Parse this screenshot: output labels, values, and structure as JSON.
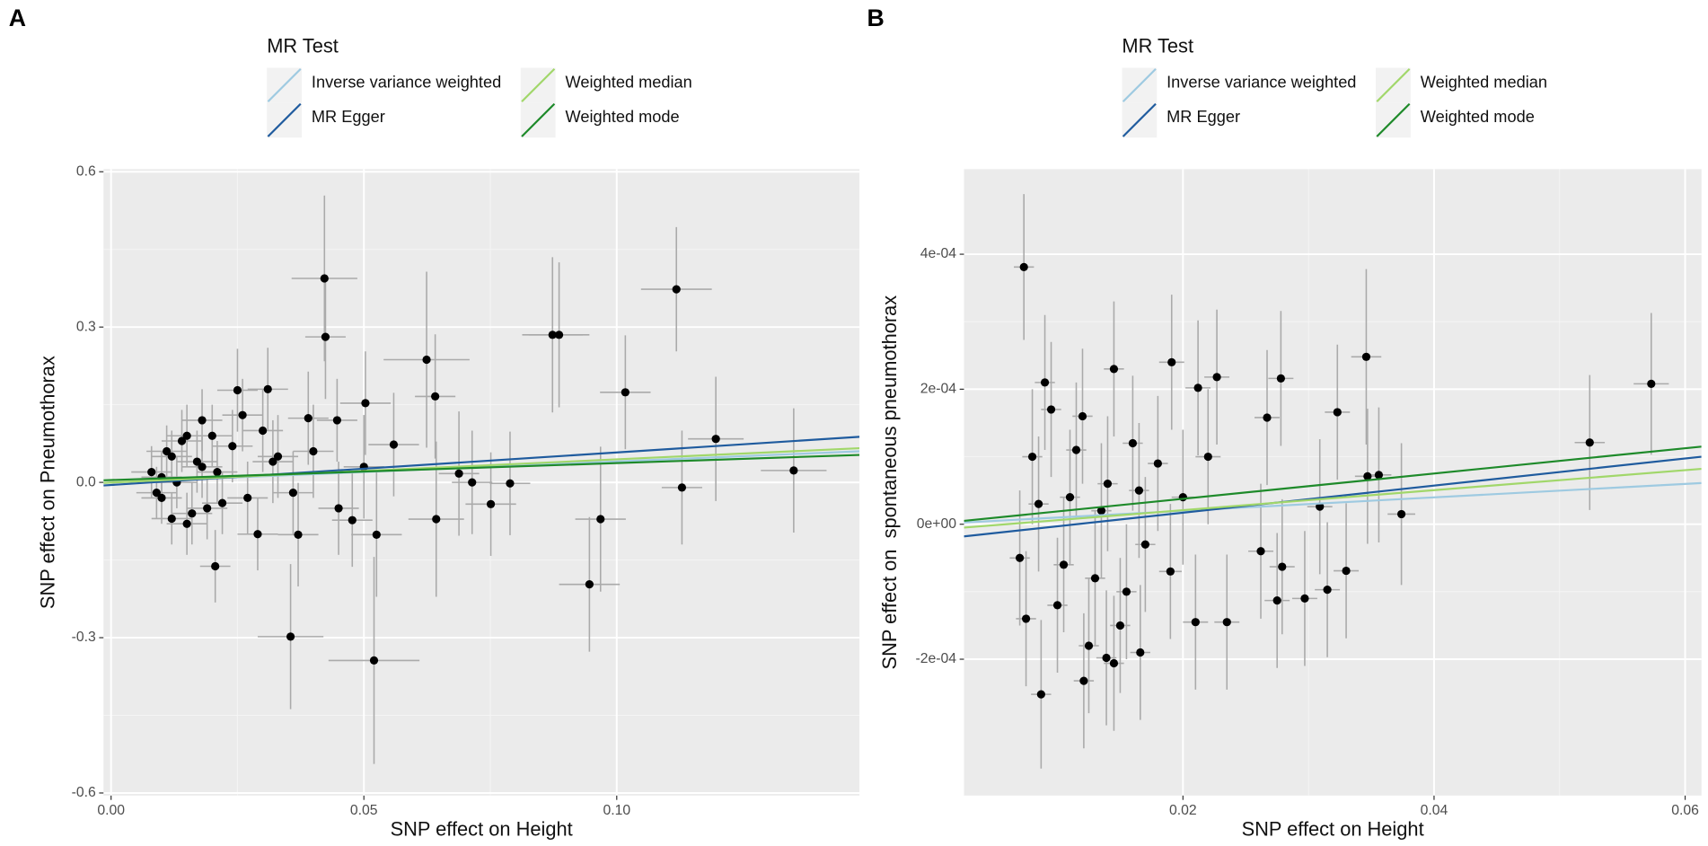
{
  "chart_data": [
    {
      "type": "scatter",
      "label": "A",
      "legend_title": "MR Test",
      "xlabel": "SNP effect on Height",
      "ylabel": "SNP effect on Pneumothorax",
      "xlim": [
        -0.0015,
        0.148
      ],
      "ylim": [
        -0.605,
        0.605
      ],
      "xticks": [
        {
          "value": 0,
          "label": "0.00"
        },
        0.05,
        {
          "value": 0.1,
          "label": "0.10"
        }
      ],
      "yticks": [
        -0.6,
        -0.3,
        {
          "value": 0,
          "label": "0.0"
        },
        0.3,
        0.6
      ],
      "grid": true,
      "point_color": "#000000",
      "errorbar_color": "#aaaaaa",
      "points": {
        "x": [
          0.0422,
          0.0424,
          0.1118,
          0.0873,
          0.0886,
          0.0624,
          0.1017,
          0.0641,
          0.1196,
          0.135,
          0.1129,
          0.0968,
          0.0946,
          0.0355,
          0.052,
          0.0643,
          0.0688,
          0.0714,
          0.0751,
          0.0789,
          0.0525,
          0.037,
          0.0206,
          0.025,
          0.031,
          0.039,
          0.0447,
          0.0503,
          0.0559,
          0.0477,
          0.008,
          0.01,
          0.012,
          0.014,
          0.016,
          0.018,
          0.02,
          0.022,
          0.009,
          0.011,
          0.013,
          0.015,
          0.017,
          0.019,
          0.021,
          0.024,
          0.027,
          0.03,
          0.033,
          0.036,
          0.01,
          0.012,
          0.015,
          0.018,
          0.026,
          0.029,
          0.032,
          0.04,
          0.045,
          0.05
        ],
        "values": [
          0.394,
          0.281,
          0.373,
          0.285,
          0.285,
          0.237,
          0.174,
          0.166,
          0.084,
          0.023,
          -0.01,
          -0.071,
          -0.197,
          -0.298,
          -0.344,
          -0.071,
          0.017,
          0.0,
          -0.042,
          -0.002,
          -0.101,
          -0.101,
          -0.162,
          0.178,
          0.18,
          0.124,
          0.12,
          0.153,
          0.073,
          -0.073,
          0.02,
          -0.03,
          0.05,
          0.08,
          -0.06,
          0.03,
          0.09,
          -0.04,
          -0.02,
          0.06,
          0.0,
          -0.08,
          0.04,
          -0.05,
          0.02,
          0.07,
          -0.03,
          0.1,
          0.05,
          -0.02,
          0.01,
          -0.07,
          0.09,
          0.12,
          0.13,
          -0.1,
          0.04,
          0.06,
          -0.05,
          0.03
        ],
        "xerr": [
          0.0065,
          0.004,
          0.007,
          0.006,
          0.006,
          0.0085,
          0.005,
          0.004,
          0.0055,
          0.0065,
          0.004,
          0.005,
          0.006,
          0.0065,
          0.009,
          0.0055,
          0.004,
          0.004,
          0.005,
          0.004,
          0.005,
          0.004,
          0.003,
          0.004,
          0.004,
          0.004,
          0.004,
          0.005,
          0.005,
          0.004,
          0.004,
          0.004,
          0.004,
          0.004,
          0.004,
          0.004,
          0.004,
          0.004,
          0.004,
          0.004,
          0.004,
          0.004,
          0.004,
          0.004,
          0.004,
          0.004,
          0.004,
          0.004,
          0.004,
          0.004,
          0.004,
          0.004,
          0.004,
          0.004,
          0.004,
          0.004,
          0.004,
          0.004,
          0.004,
          0.004
        ],
        "yerr": [
          0.16,
          0.12,
          0.12,
          0.15,
          0.14,
          0.17,
          0.11,
          0.12,
          0.12,
          0.12,
          0.11,
          0.14,
          0.13,
          0.14,
          0.2,
          0.15,
          0.12,
          0.1,
          0.1,
          0.1,
          0.12,
          0.1,
          0.07,
          0.08,
          0.08,
          0.09,
          0.08,
          0.1,
          0.1,
          0.09,
          0.05,
          0.05,
          0.05,
          0.06,
          0.06,
          0.06,
          0.06,
          0.06,
          0.05,
          0.05,
          0.05,
          0.06,
          0.06,
          0.06,
          0.06,
          0.07,
          0.07,
          0.08,
          0.08,
          0.08,
          0.05,
          0.05,
          0.06,
          0.06,
          0.07,
          0.07,
          0.08,
          0.09,
          0.09,
          0.1
        ]
      },
      "series": [
        {
          "name": "Inverse variance weighted",
          "color": "#9ecae1",
          "x": [
            -0.0015,
            0.148
          ],
          "values": [
            -0.001,
            0.06
          ]
        },
        {
          "name": "MR Egger",
          "color": "#1f5b9e",
          "x": [
            -0.0015,
            0.148
          ],
          "values": [
            -0.006,
            0.088
          ]
        },
        {
          "name": "Weighted median",
          "color": "#a1d76a",
          "x": [
            -0.0015,
            0.148
          ],
          "values": [
            -0.001,
            0.066
          ]
        },
        {
          "name": "Weighted mode",
          "color": "#1e8a2a",
          "x": [
            -0.0015,
            0.148
          ],
          "values": [
            0.004,
            0.053
          ]
        }
      ]
    },
    {
      "type": "scatter",
      "label": "B",
      "legend_title": "MR Test",
      "xlabel": "SNP effect on Height",
      "ylabel": "SNP effect on  spontaneous pneumothorax",
      "xlim": [
        0.00256,
        0.0613
      ],
      "ylim": [
        -0.000402,
        0.000526
      ],
      "xticks": [
        0.02,
        0.04,
        0.06
      ],
      "yticks": [
        {
          "value": -0.0002,
          "label": "-2e-04"
        },
        {
          "value": 0,
          "label": "0e+00"
        },
        {
          "value": 0.0002,
          "label": "2e-04"
        },
        {
          "value": 0.0004,
          "label": "4e-04"
        }
      ],
      "grid": true,
      "point_color": "#000000",
      "errorbar_color": "#aaaaaa",
      "points": {
        "x": [
          0.00733,
          0.0573,
          0.0524,
          0.0346,
          0.0323,
          0.0374,
          0.0347,
          0.0356,
          0.0278,
          0.0267,
          0.0227,
          0.0191,
          0.0212,
          0.021,
          0.0235,
          0.0315,
          0.033,
          0.0297,
          0.0275,
          0.0309,
          0.0087,
          0.0139,
          0.0121,
          0.0166,
          0.0145,
          0.0262,
          0.0279,
          0.007,
          0.008,
          0.009,
          0.01,
          0.011,
          0.012,
          0.013,
          0.014,
          0.015,
          0.016,
          0.017,
          0.018,
          0.0075,
          0.0085,
          0.0095,
          0.0105,
          0.0115,
          0.0125,
          0.0135,
          0.0145,
          0.0155,
          0.0165,
          0.019,
          0.02,
          0.022
        ],
        "values": [
          0.000381,
          0.000208,
          0.000121,
          0.000248,
          0.000166,
          1.5e-05,
          7.1e-05,
          7.3e-05,
          0.000216,
          0.000158,
          0.000218,
          0.00024,
          0.000202,
          -0.000145,
          -0.000145,
          -9.7e-05,
          -6.9e-05,
          -0.00011,
          -0.000113,
          2.6e-05,
          -0.000252,
          -0.000198,
          -0.000232,
          -0.00019,
          -0.000206,
          -4e-05,
          -6.3e-05,
          -5e-05,
          0.0001,
          0.00021,
          -0.00012,
          4e-05,
          0.00016,
          -8e-05,
          6e-05,
          -0.00015,
          0.00012,
          -3e-05,
          9e-05,
          -0.00014,
          3e-05,
          0.00017,
          -6e-05,
          0.00011,
          -0.00018,
          2e-05,
          0.00023,
          -0.0001,
          5e-05,
          -7e-05,
          4e-05,
          0.0001
        ],
        "xerr": [
          0.0008,
          0.0014,
          0.0012,
          0.0012,
          0.001,
          0.0011,
          0.001,
          0.001,
          0.001,
          0.001,
          0.001,
          0.001,
          0.001,
          0.001,
          0.001,
          0.001,
          0.001,
          0.001,
          0.001,
          0.001,
          0.0008,
          0.0008,
          0.0008,
          0.0008,
          0.0008,
          0.001,
          0.001,
          0.0008,
          0.0008,
          0.0008,
          0.0008,
          0.0008,
          0.0008,
          0.0008,
          0.0008,
          0.0008,
          0.0008,
          0.0008,
          0.0008,
          0.0008,
          0.0008,
          0.0008,
          0.0008,
          0.0008,
          0.0008,
          0.0008,
          0.0008,
          0.0008,
          0.0008,
          0.0009,
          0.0009,
          0.001
        ],
        "yerr": [
          0.000108,
          0.000105,
          0.0001,
          0.00013,
          0.0001,
          0.000105,
          0.0001,
          0.0001,
          0.0001,
          0.0001,
          0.0001,
          0.0001,
          0.0001,
          0.0001,
          0.0001,
          0.0001,
          0.0001,
          0.0001,
          0.0001,
          0.0001,
          0.00011,
          0.0001,
          0.0001,
          0.0001,
          0.0001,
          0.0001,
          0.0001,
          0.0001,
          0.0001,
          0.0001,
          0.0001,
          0.0001,
          0.0001,
          0.0001,
          0.0001,
          0.0001,
          0.0001,
          0.0001,
          0.0001,
          0.0001,
          0.0001,
          0.0001,
          0.0001,
          0.0001,
          0.0001,
          0.0001,
          0.0001,
          0.0001,
          0.0001,
          0.0001,
          0.0001,
          0.0001
        ]
      },
      "series": [
        {
          "name": "Inverse variance weighted",
          "color": "#9ecae1",
          "x": [
            0.00256,
            0.0613
          ],
          "values": [
            2.5e-06,
            6.1e-05
          ]
        },
        {
          "name": "MR Egger",
          "color": "#1f5b9e",
          "x": [
            0.00256,
            0.0613
          ],
          "values": [
            -1.8e-05,
            0.0001
          ]
        },
        {
          "name": "Weighted median",
          "color": "#a1d76a",
          "x": [
            0.00256,
            0.0613
          ],
          "values": [
            -5e-06,
            8.2e-05
          ]
        },
        {
          "name": "Weighted mode",
          "color": "#1e8a2a",
          "x": [
            0.00256,
            0.0613
          ],
          "values": [
            5e-06,
            0.000115
          ]
        }
      ]
    }
  ]
}
